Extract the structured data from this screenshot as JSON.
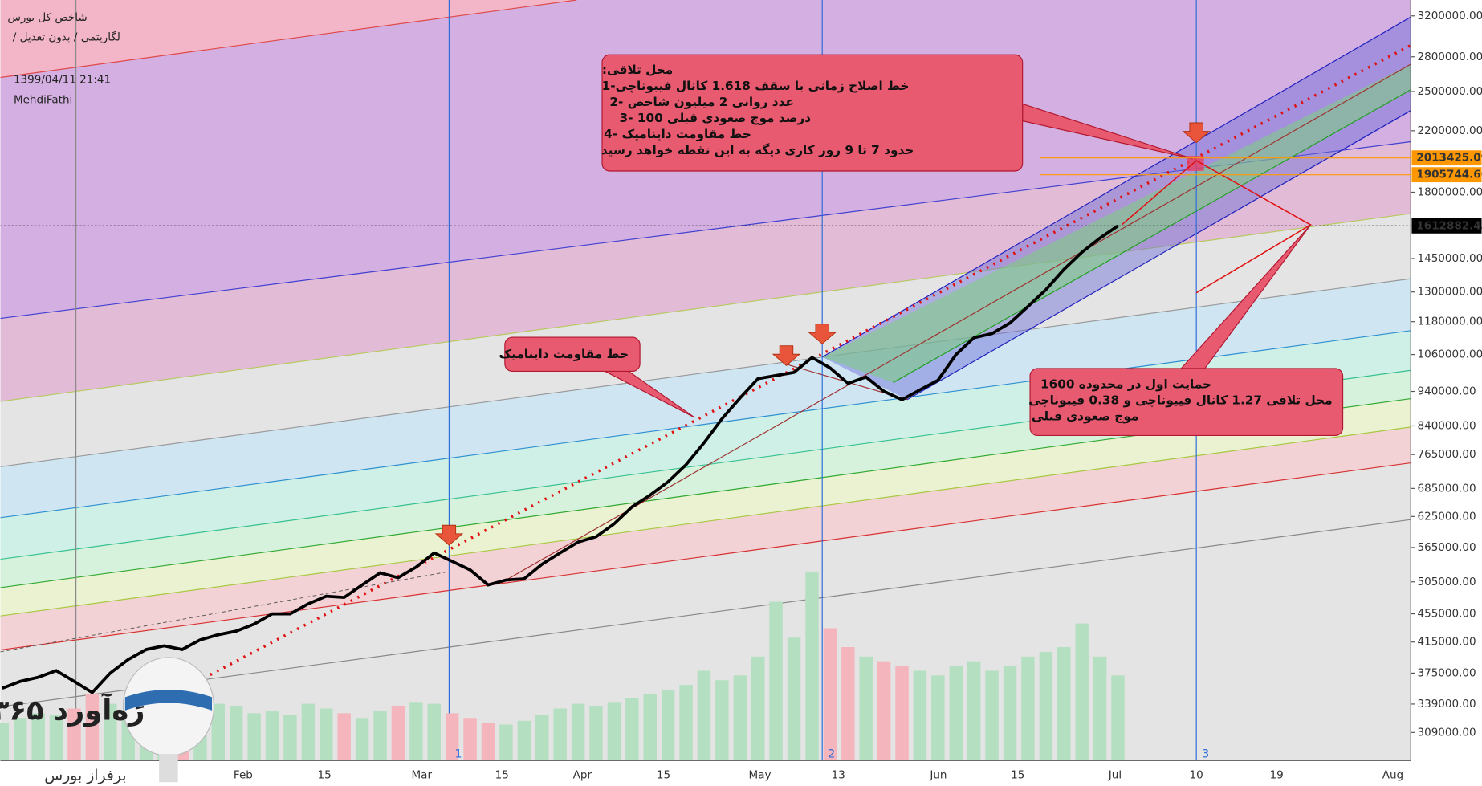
{
  "header": {
    "title": "شاخص کل بورس",
    "subtitle": "لگاریتمی / بدون تعدیل /",
    "datetime": "1399/04/11 21:41",
    "author": "MehdiFathi"
  },
  "annotations": [
    {
      "lines": [
        "محل تلاقی:",
        "خط اصلاح زمانی با سقف 1.618 کانال فیبوناچی-1",
        "عدد روانی 2 میلیون شاخص -2",
        "درصد موج صعودی قبلی 100 -3",
        "خط مقاومت داینامیک -4",
        "حدود 7 تا 9 روز کاری دیگه به این نقطه خواهد رسید"
      ]
    },
    {
      "lines": [
        "خط مقاومت داینامیک"
      ]
    },
    {
      "lines": [
        "حمایت اول در محدوده 1600",
        "محل تلاقی 1.27 کانال فیبوناچی و 0.38 فیبوناچی",
        "موج صعودی قبلی"
      ]
    }
  ],
  "watermark": {
    "brand": "۳۶۵ رَه‌آورد",
    "tagline": "برفراز بورس"
  },
  "chart_data": {
    "type": "line",
    "log_scale": true,
    "color": "#000000",
    "ylim": [
      282000,
      3370000
    ],
    "yticks": [
      {
        "value": 3200000,
        "label": "3200000.00"
      },
      {
        "value": 2800000,
        "label": "2800000.00"
      },
      {
        "value": 2500000,
        "label": "2500000.00"
      },
      {
        "value": 2200000,
        "label": "2200000.00"
      },
      {
        "value": 1800000,
        "label": "1800000.00"
      },
      {
        "value": 1450000,
        "label": "1450000.00"
      },
      {
        "value": 1300000,
        "label": "1300000.00"
      },
      {
        "value": 1180000,
        "label": "1180000.00"
      },
      {
        "value": 1060000,
        "label": "1060000.00"
      },
      {
        "value": 940000,
        "label": "940000.00"
      },
      {
        "value": 840000,
        "label": "840000.00"
      },
      {
        "value": 765000,
        "label": "765000.00"
      },
      {
        "value": 685000,
        "label": "685000.00"
      },
      {
        "value": 625000,
        "label": "625000.00"
      },
      {
        "value": 565000,
        "label": "565000.00"
      },
      {
        "value": 505000,
        "label": "505000.00"
      },
      {
        "value": 455000,
        "label": "455000.00"
      },
      {
        "value": 415000,
        "label": "415000.00"
      },
      {
        "value": 375000,
        "label": "375000.00"
      },
      {
        "value": 339000,
        "label": "339000.00"
      },
      {
        "value": 309000,
        "label": "309000.00"
      }
    ],
    "x_labels": [
      "Feb",
      "15",
      "Mar",
      "15",
      "Apr",
      "15",
      "May",
      "13",
      "Jun",
      "15",
      "Jul",
      "10",
      "19",
      "Aug"
    ],
    "values": [
      357000,
      365000,
      370000,
      378000,
      365000,
      352000,
      375000,
      392000,
      405000,
      410000,
      405000,
      418000,
      425000,
      430000,
      440000,
      455000,
      455000,
      470000,
      482000,
      480000,
      500000,
      520000,
      512000,
      530000,
      555000,
      540000,
      525000,
      500000,
      508000,
      510000,
      535000,
      555000,
      575000,
      585000,
      610000,
      645000,
      670000,
      700000,
      740000,
      795000,
      860000,
      920000,
      980000,
      990000,
      1000000,
      1050000,
      1015000,
      965000,
      985000,
      940000,
      915000,
      945000,
      975000,
      1060000,
      1120000,
      1135000,
      1175000,
      1240000,
      1310000,
      1400000,
      1480000,
      1550000,
      1612882.43
    ],
    "volume": {
      "up_color": "#b5dfc1",
      "down_color": "#f5b5bd",
      "values": [
        40,
        45,
        50,
        48,
        55,
        70,
        60,
        45,
        50,
        52,
        48,
        55,
        60,
        58,
        50,
        52,
        48,
        60,
        55,
        50,
        45,
        52,
        58,
        62,
        60,
        50,
        45,
        40,
        38,
        42,
        48,
        55,
        60,
        58,
        62,
        66,
        70,
        75,
        80,
        95,
        85,
        90,
        110,
        168,
        130,
        200,
        140,
        120,
        110,
        105,
        100,
        95,
        90,
        100,
        105,
        95,
        100,
        110,
        115,
        120,
        145,
        110,
        90
      ]
    },
    "price_labels": [
      {
        "value": 1612882.43,
        "label": "1612882.43",
        "color": "#000000"
      },
      {
        "value": 2013425.09,
        "label": "2013425.09",
        "color": "#ff9800"
      },
      {
        "value": 1905744.66,
        "label": "1905744.66",
        "color": "#ff9800"
      }
    ],
    "vertical_markers": [
      "1",
      "2",
      "3"
    ]
  }
}
